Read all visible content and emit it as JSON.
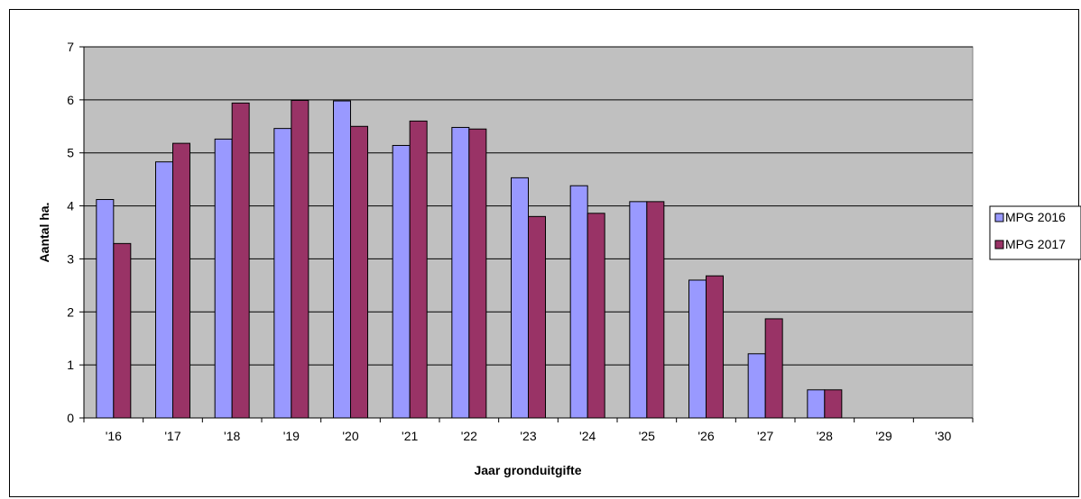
{
  "chart_data": {
    "type": "bar",
    "categories": [
      "'16",
      "'17",
      "'18",
      "'19",
      "'20",
      "'21",
      "'22",
      "'23",
      "'24",
      "'25",
      "'26",
      "'27",
      "'28",
      "'29",
      "'30"
    ],
    "series": [
      {
        "name": "MPG 2016",
        "color": "#9999ff",
        "values": [
          4.12,
          4.83,
          5.26,
          5.46,
          5.98,
          5.14,
          5.48,
          4.53,
          4.38,
          4.08,
          2.6,
          1.21,
          0.53,
          0,
          0
        ]
      },
      {
        "name": "MPG 2017",
        "color": "#993366",
        "values": [
          3.29,
          5.18,
          5.94,
          5.99,
          5.5,
          5.6,
          5.45,
          3.8,
          3.86,
          4.08,
          2.68,
          1.87,
          0.53,
          0,
          0
        ]
      }
    ],
    "xlabel": "Jaar gronduitgifte",
    "ylabel": "Aantal ha.",
    "ylim": [
      0,
      7
    ],
    "yticks": [
      0,
      1,
      2,
      3,
      4,
      5,
      6,
      7
    ],
    "grid": true,
    "plot_background": "#c0c0c0",
    "legend_position": "right"
  }
}
